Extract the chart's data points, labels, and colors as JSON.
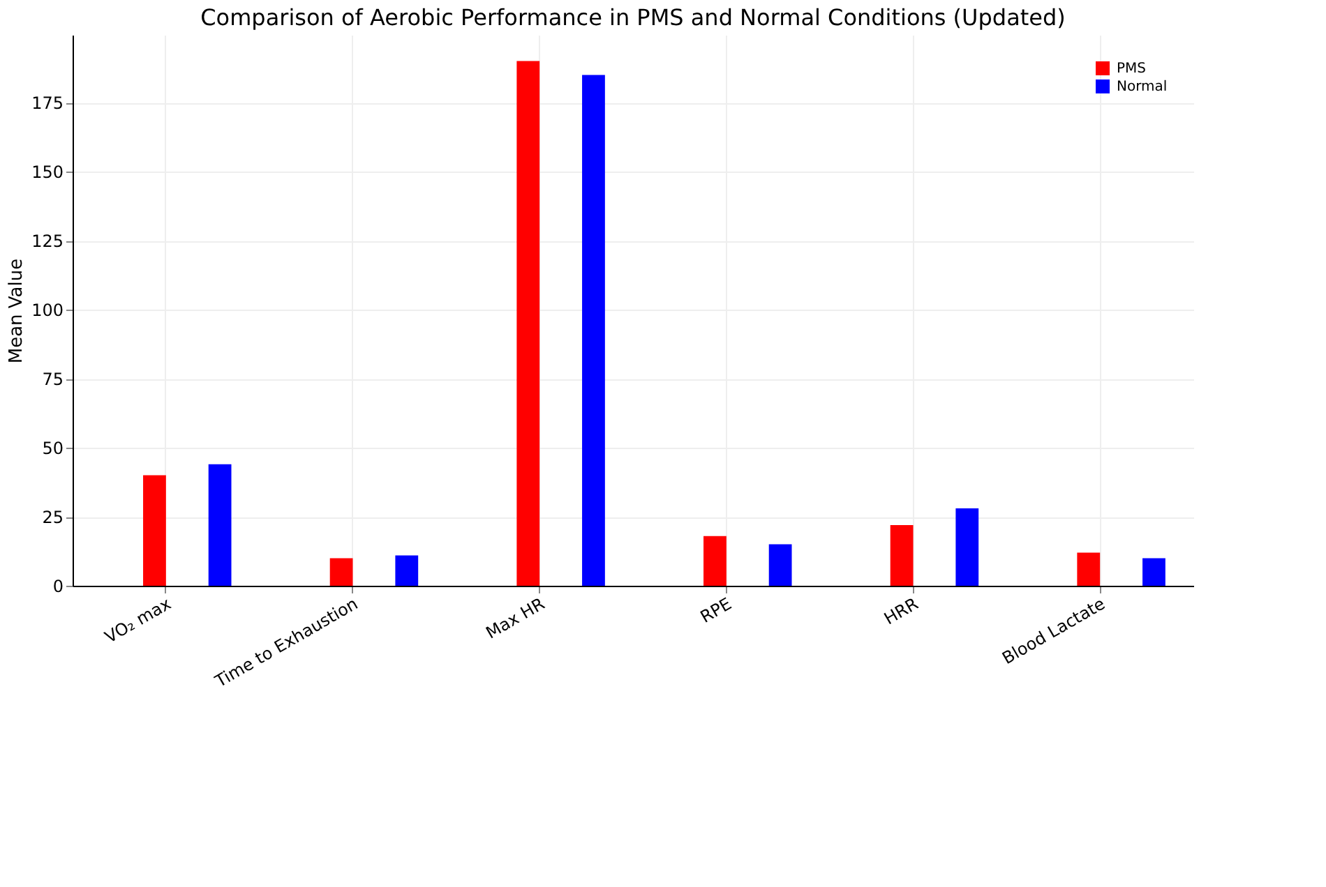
{
  "chart_data": {
    "type": "bar",
    "title": "Comparison of Aerobic Performance in PMS and Normal Conditions (Updated)",
    "ylabel": "Mean Value",
    "categories": [
      "VO₂ max",
      "Time to Exhaustion",
      "Max HR",
      "RPE",
      "HRR",
      "Blood Lactate"
    ],
    "series": [
      {
        "name": "PMS",
        "color": "#ff0000",
        "values": [
          40,
          10,
          190,
          18,
          22,
          12
        ]
      },
      {
        "name": "Normal",
        "color": "#0000ff",
        "values": [
          44,
          11,
          185,
          15,
          28,
          10
        ]
      }
    ],
    "ylim": [
      0,
      199.5
    ],
    "yticks": [
      0,
      25,
      50,
      75,
      100,
      125,
      150,
      175
    ],
    "grid": true,
    "legend": "top right"
  }
}
